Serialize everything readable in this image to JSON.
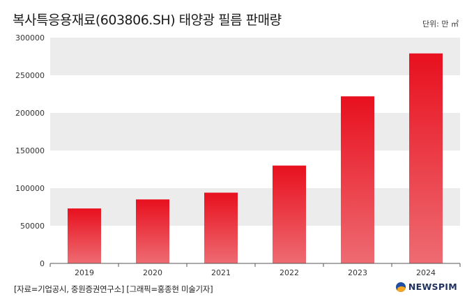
{
  "header": {
    "title": "복사특응용재료(603806.SH) 태양광 필름 판매량",
    "unit": "단위: 만 ㎡"
  },
  "footer": {
    "source": "[자료=기업공시, 중원증권연구소] [그래픽=홍종현 미술기자]",
    "logo_text": "NEWSPIM"
  },
  "colors": {
    "bar_top": "#e8101e",
    "bar_bottom": "#ee6b72",
    "band": "#ececec"
  },
  "chart_data": {
    "type": "bar",
    "title": "복사특응용재료(603806.SH) 태양광 필름 판매량",
    "xlabel": "",
    "ylabel": "",
    "categories": [
      "2019",
      "2020",
      "2021",
      "2022",
      "2023",
      "2024"
    ],
    "values": [
      73000,
      85000,
      94000,
      130000,
      222000,
      279000
    ],
    "ylim": [
      0,
      300000
    ],
    "yticks": [
      0,
      50000,
      100000,
      150000,
      200000,
      250000,
      300000
    ],
    "grid": "alternating horizontal bands",
    "legend": "none"
  }
}
